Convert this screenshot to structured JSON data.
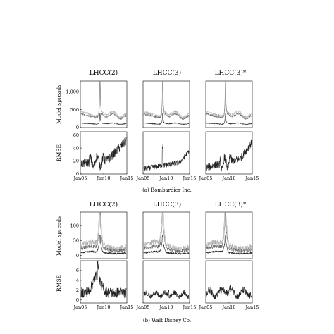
{
  "chart_data": [
    {
      "type": "line",
      "panel_group": "a",
      "row": "spreads",
      "column_title": "LHCC(2)",
      "ylabel": "Model spreads",
      "ylim": [
        0,
        1300
      ],
      "yticks": [
        0,
        500,
        1000
      ],
      "ytick_labels": [
        "0",
        "500",
        "1,000"
      ],
      "x_range": [
        "2005-01",
        "2015-01"
      ]
    },
    {
      "type": "line",
      "panel_group": "a",
      "row": "spreads",
      "column_title": "LHCC(3)",
      "ylim": [
        0,
        1300
      ],
      "x_range": [
        "2005-01",
        "2015-01"
      ]
    },
    {
      "type": "line",
      "panel_group": "a",
      "row": "spreads",
      "column_title": "LHCC(3)*",
      "ylim": [
        0,
        1300
      ],
      "x_range": [
        "2005-01",
        "2015-01"
      ]
    },
    {
      "type": "line",
      "panel_group": "a",
      "row": "rmse",
      "ylabel": "RMSE",
      "ylim": [
        0,
        65
      ],
      "yticks": [
        0,
        20,
        40,
        60
      ],
      "ytick_labels": [
        "0",
        "20",
        "40",
        "60"
      ],
      "x_range": [
        "2005-01",
        "2015-01"
      ],
      "xticks": [
        "Jan05",
        "Jan10",
        "Jan15"
      ]
    },
    {
      "type": "line",
      "panel_group": "a",
      "row": "rmse",
      "ylim": [
        0,
        65
      ],
      "x_range": [
        "2005-01",
        "2015-01"
      ],
      "xticks": [
        "Jan05",
        "Jan10",
        "Jan15"
      ]
    },
    {
      "type": "line",
      "panel_group": "a",
      "row": "rmse",
      "ylim": [
        0,
        65
      ],
      "x_range": [
        "2005-01",
        "2015-01"
      ],
      "xticks": [
        "Jan05",
        "Jan10",
        "Jan15"
      ]
    },
    {
      "type": "line",
      "panel_group": "b",
      "row": "spreads",
      "column_title": "LHCC(2)",
      "ylabel": "Model spreads",
      "ylim": [
        -10,
        145
      ],
      "yticks": [
        0,
        50,
        100
      ],
      "ytick_labels": [
        "0",
        "50",
        "100"
      ],
      "x_range": [
        "2005-01",
        "2015-01"
      ]
    },
    {
      "type": "line",
      "panel_group": "b",
      "row": "spreads",
      "column_title": "LHCC(3)",
      "ylim": [
        -10,
        145
      ],
      "x_range": [
        "2005-01",
        "2015-01"
      ]
    },
    {
      "type": "line",
      "panel_group": "b",
      "row": "spreads",
      "column_title": "LHCC(3)*",
      "ylim": [
        -10,
        145
      ],
      "x_range": [
        "2005-01",
        "2015-01"
      ]
    },
    {
      "type": "line",
      "panel_group": "b",
      "row": "rmse",
      "ylabel": "RMSE",
      "ylim": [
        -0.6,
        8
      ],
      "yticks": [
        0,
        2,
        4,
        6
      ],
      "ytick_labels": [
        "0",
        "2",
        "4",
        "6"
      ],
      "x_range": [
        "2005-01",
        "2015-01"
      ],
      "xticks": [
        "Jan05",
        "Jan10",
        "Jan15"
      ]
    },
    {
      "type": "line",
      "panel_group": "b",
      "row": "rmse",
      "ylim": [
        -0.6,
        8
      ],
      "x_range": [
        "2005-01",
        "2015-01"
      ],
      "xticks": [
        "Jan05",
        "Jan10",
        "Jan15"
      ]
    },
    {
      "type": "line",
      "panel_group": "b",
      "row": "rmse",
      "ylim": [
        -0.6,
        8
      ],
      "x_range": [
        "2005-01",
        "2015-01"
      ],
      "xticks": [
        "Jan05",
        "Jan10",
        "Jan15"
      ]
    }
  ],
  "captions": {
    "a": "(a) Bombardier Inc.",
    "b": "(b) Walt Disney Co."
  },
  "colors": {
    "series_dark": "#222222",
    "series_mid": "#666666",
    "series_light": "#aaaaaa"
  }
}
